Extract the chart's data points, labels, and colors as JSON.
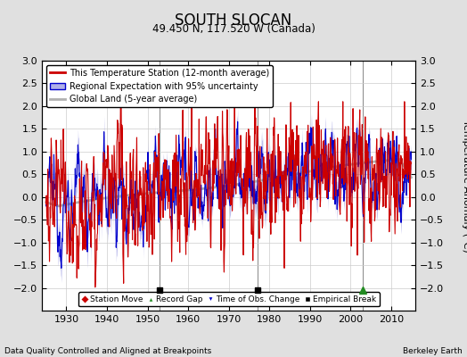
{
  "title": "SOUTH SLOCAN",
  "subtitle": "49.450 N, 117.520 W (Canada)",
  "ylabel": "Temperature Anomaly (°C)",
  "xlabel_bottom_left": "Data Quality Controlled and Aligned at Breakpoints",
  "xlabel_bottom_right": "Berkeley Earth",
  "ylim": [
    -2.5,
    3.0
  ],
  "xlim": [
    1924,
    2016
  ],
  "yticks": [
    -2,
    -1.5,
    -1,
    -0.5,
    0,
    0.5,
    1,
    1.5,
    2,
    2.5,
    3
  ],
  "xticks": [
    1930,
    1940,
    1950,
    1960,
    1970,
    1980,
    1990,
    2000,
    2010
  ],
  "background_color": "#e0e0e0",
  "plot_bg_color": "#ffffff",
  "grid_color": "#cccccc",
  "red_color": "#cc0000",
  "blue_color": "#0000cc",
  "blue_fill_color": "#b0b0e8",
  "gray_color": "#b0b0b0",
  "vertical_line_color": "#888888",
  "empirical_breaks": [
    1953,
    1977
  ],
  "record_gap_x": [
    2003
  ],
  "seed": 12345
}
